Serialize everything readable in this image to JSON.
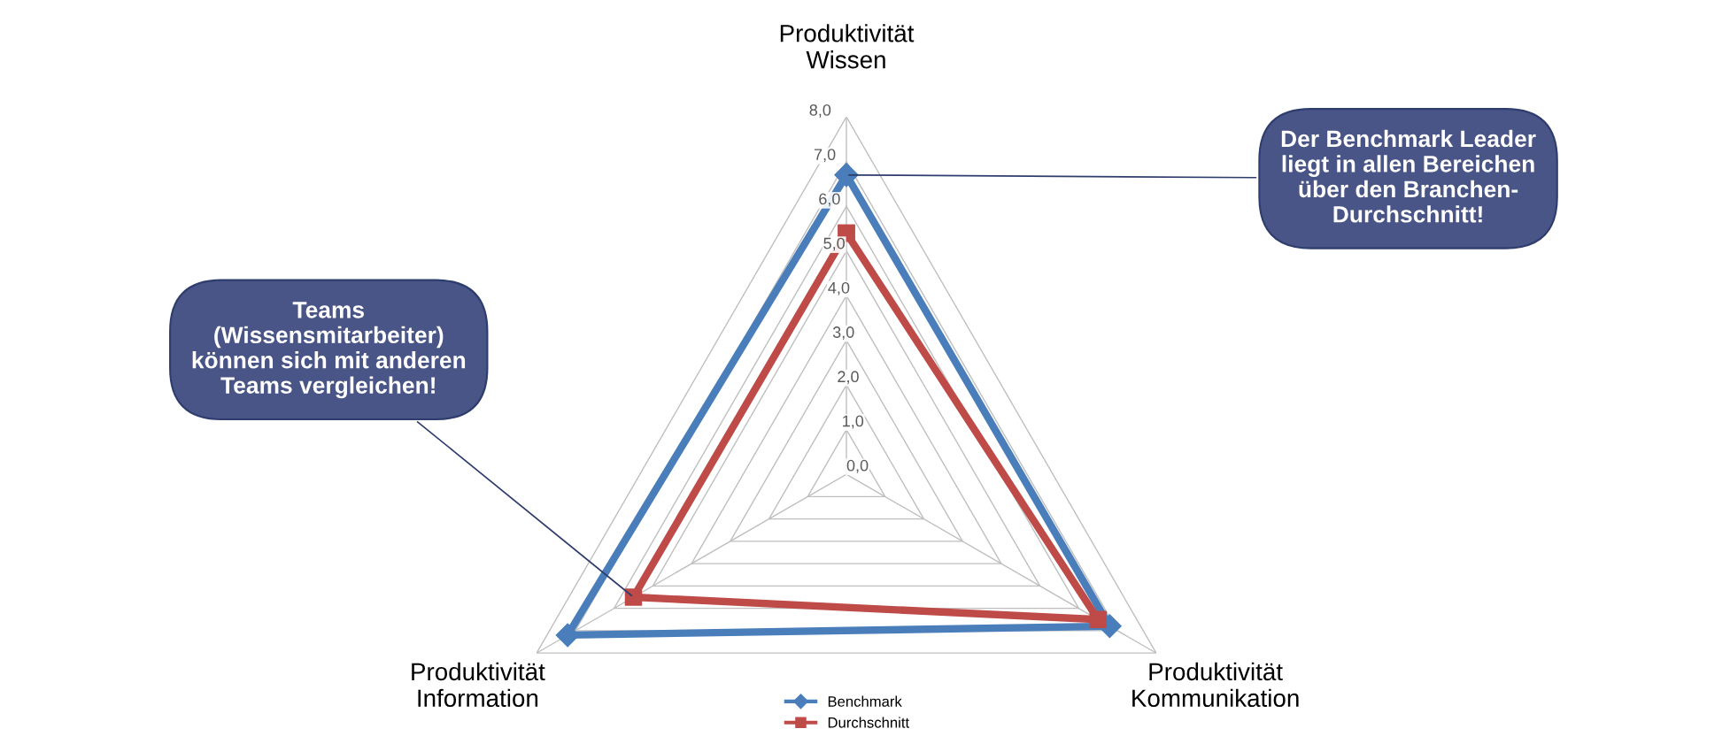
{
  "chart_data": {
    "type": "radar",
    "categories": [
      "Produktivität\nWissen",
      "Produktivität\nKommunikation",
      "Produktivität\nInformation"
    ],
    "series": [
      {
        "name": "Benchmark",
        "color": "#4a7ebb",
        "marker": "diamond",
        "values": [
          6.7,
          6.8,
          7.2
        ]
      },
      {
        "name": "Durchschnitt",
        "color": "#be4b48",
        "marker": "square",
        "values": [
          5.4,
          6.5,
          5.5
        ]
      }
    ],
    "ylim": [
      0,
      8
    ],
    "yticks": [
      {
        "value": 0,
        "label": "0,0"
      },
      {
        "value": 1,
        "label": "1,0"
      },
      {
        "value": 2,
        "label": "2,0"
      },
      {
        "value": 3,
        "label": "3,0"
      },
      {
        "value": 4,
        "label": "4,0"
      },
      {
        "value": 5,
        "label": "5,0"
      },
      {
        "value": 6,
        "label": "6,0"
      },
      {
        "value": 7,
        "label": "7,0"
      },
      {
        "value": 8,
        "label": "8,0"
      }
    ],
    "grid": true,
    "legend": "bottom",
    "annotations": [
      "Der Benchmark Leader\nliegt in allen Bereichen\nüber den Branchen-\nDurchschnitt!",
      "Teams\n(Wissensmitarbeiter)\nkönnen sich mit anderen\nTeams vergleichen!"
    ]
  }
}
